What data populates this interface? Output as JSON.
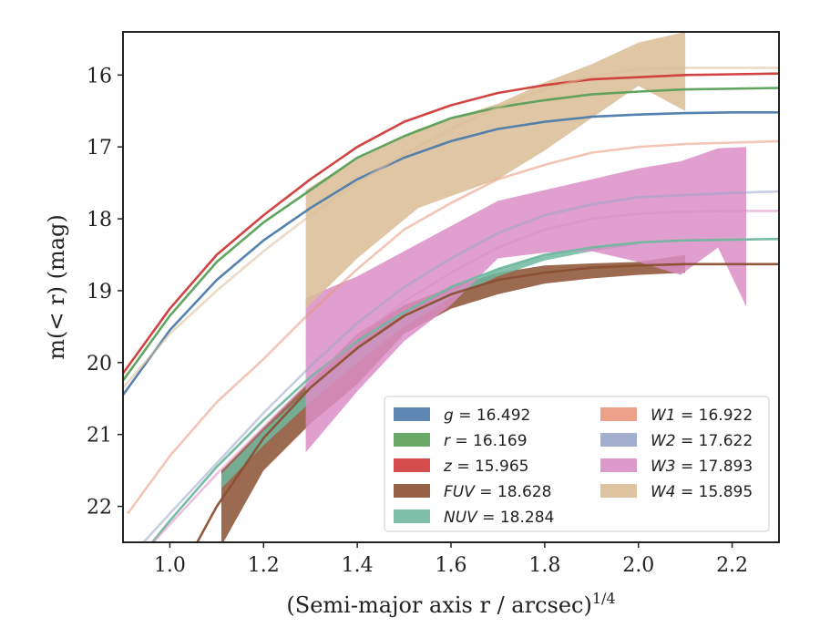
{
  "chart_data": {
    "type": "line",
    "title": "",
    "xlabel": "(Semi-major axis r / arcsec)",
    "xlabel_superscript": "1/4",
    "ylabel": "m(< r) (mag)",
    "xlim": [
      0.9,
      2.3
    ],
    "ylim": [
      22.5,
      15.4
    ],
    "y_inverted": true,
    "grid": false,
    "legend_position": "lower-right",
    "x_ticks": [
      "1.0",
      "1.2",
      "1.4",
      "1.6",
      "1.8",
      "2.0",
      "2.2"
    ],
    "y_ticks": [
      "16",
      "17",
      "18",
      "19",
      "20",
      "21",
      "22"
    ],
    "series": [
      {
        "name": "g = 16.492",
        "band": "g",
        "value": "16.492",
        "color": "#4c7bab",
        "curve": [
          [
            0.9,
            20.45
          ],
          [
            1.0,
            19.55
          ],
          [
            1.1,
            18.85
          ],
          [
            1.2,
            18.3
          ],
          [
            1.3,
            17.85
          ],
          [
            1.4,
            17.45
          ],
          [
            1.5,
            17.15
          ],
          [
            1.6,
            16.92
          ],
          [
            1.7,
            16.75
          ],
          [
            1.8,
            16.65
          ],
          [
            1.9,
            16.58
          ],
          [
            2.0,
            16.55
          ],
          [
            2.1,
            16.53
          ],
          [
            2.2,
            16.52
          ],
          [
            2.3,
            16.52
          ]
        ],
        "band_region": null
      },
      {
        "name": "r = 16.169",
        "band": "r",
        "value": "16.169",
        "color": "#5aa058",
        "curve": [
          [
            0.9,
            20.25
          ],
          [
            1.0,
            19.35
          ],
          [
            1.1,
            18.6
          ],
          [
            1.2,
            18.05
          ],
          [
            1.3,
            17.6
          ],
          [
            1.4,
            17.15
          ],
          [
            1.5,
            16.85
          ],
          [
            1.6,
            16.6
          ],
          [
            1.7,
            16.45
          ],
          [
            1.8,
            16.35
          ],
          [
            1.9,
            16.27
          ],
          [
            2.0,
            16.23
          ],
          [
            2.1,
            16.2
          ],
          [
            2.2,
            16.19
          ],
          [
            2.3,
            16.18
          ]
        ],
        "band_region": null
      },
      {
        "name": "z = 15.965",
        "band": "z",
        "value": "15.965",
        "color": "#d03a3a",
        "curve": [
          [
            0.9,
            20.15
          ],
          [
            1.0,
            19.25
          ],
          [
            1.1,
            18.5
          ],
          [
            1.2,
            17.95
          ],
          [
            1.3,
            17.45
          ],
          [
            1.4,
            17.0
          ],
          [
            1.5,
            16.65
          ],
          [
            1.6,
            16.42
          ],
          [
            1.7,
            16.25
          ],
          [
            1.8,
            16.14
          ],
          [
            1.9,
            16.06
          ],
          [
            2.0,
            16.03
          ],
          [
            2.1,
            16.0
          ],
          [
            2.2,
            15.99
          ],
          [
            2.3,
            15.98
          ]
        ],
        "band_region": null
      },
      {
        "name": "FUV = 18.628",
        "band": "FUV",
        "value": "18.628",
        "color": "#8b5033",
        "curve": [
          [
            1.05,
            22.6
          ],
          [
            1.1,
            22.0
          ],
          [
            1.2,
            21.05
          ],
          [
            1.3,
            20.35
          ],
          [
            1.4,
            19.8
          ],
          [
            1.5,
            19.35
          ],
          [
            1.6,
            19.05
          ],
          [
            1.7,
            18.85
          ],
          [
            1.8,
            18.75
          ],
          [
            1.9,
            18.68
          ],
          [
            2.0,
            18.65
          ],
          [
            2.1,
            18.63
          ],
          [
            2.2,
            18.63
          ],
          [
            2.3,
            18.63
          ]
        ],
        "band_region": {
          "upper": [
            [
              1.11,
              21.5
            ],
            [
              1.2,
              20.9
            ],
            [
              1.3,
              20.25
            ],
            [
              1.4,
              19.6
            ],
            [
              1.5,
              19.2
            ],
            [
              1.6,
              18.95
            ],
            [
              1.7,
              18.75
            ],
            [
              1.8,
              18.65
            ],
            [
              1.9,
              18.62
            ],
            [
              2.0,
              18.6
            ],
            [
              2.1,
              18.5
            ]
          ],
          "lower": [
            [
              1.11,
              22.55
            ],
            [
              1.2,
              21.5
            ],
            [
              1.3,
              20.85
            ],
            [
              1.4,
              20.3
            ],
            [
              1.5,
              19.6
            ],
            [
              1.6,
              19.25
            ],
            [
              1.7,
              19.05
            ],
            [
              1.8,
              18.9
            ],
            [
              1.9,
              18.83
            ],
            [
              2.0,
              18.78
            ],
            [
              2.1,
              18.75
            ]
          ]
        }
      },
      {
        "name": "NUV = 18.284",
        "band": "NUV",
        "value": "18.284",
        "color": "#6fb8a0",
        "curve": [
          [
            0.95,
            22.6
          ],
          [
            1.0,
            22.2
          ],
          [
            1.1,
            21.45
          ],
          [
            1.2,
            20.8
          ],
          [
            1.3,
            20.2
          ],
          [
            1.4,
            19.7
          ],
          [
            1.5,
            19.3
          ],
          [
            1.6,
            18.95
          ],
          [
            1.7,
            18.7
          ],
          [
            1.8,
            18.5
          ],
          [
            1.9,
            18.4
          ],
          [
            2.0,
            18.33
          ],
          [
            2.1,
            18.3
          ],
          [
            2.2,
            18.29
          ],
          [
            2.3,
            18.28
          ]
        ],
        "band_region": {
          "upper": [
            [
              1.11,
              21.55
            ],
            [
              1.2,
              20.95
            ],
            [
              1.3,
              20.35
            ],
            [
              1.4,
              19.8
            ],
            [
              1.5,
              19.35
            ],
            [
              1.6,
              19.0
            ],
            [
              1.7,
              18.7
            ],
            [
              1.8,
              18.5
            ],
            [
              1.9,
              18.4
            ],
            [
              2.0,
              18.33
            ]
          ],
          "lower": [
            [
              1.11,
              21.75
            ],
            [
              1.2,
              21.15
            ],
            [
              1.3,
              20.55
            ],
            [
              1.4,
              20.0
            ],
            [
              1.5,
              19.5
            ],
            [
              1.6,
              19.1
            ],
            [
              1.7,
              18.8
            ],
            [
              1.8,
              18.58
            ],
            [
              1.9,
              18.45
            ],
            [
              2.0,
              18.36
            ]
          ]
        }
      },
      {
        "name": "W1 = 16.922",
        "band": "W1",
        "value": "16.922",
        "color": "#e9967a",
        "curve": [
          [
            0.91,
            22.1
          ],
          [
            1.0,
            21.3
          ],
          [
            1.1,
            20.55
          ],
          [
            1.2,
            19.95
          ],
          [
            1.3,
            19.3
          ],
          [
            1.4,
            18.7
          ],
          [
            1.5,
            18.15
          ],
          [
            1.6,
            17.78
          ],
          [
            1.7,
            17.45
          ],
          [
            1.8,
            17.25
          ],
          [
            1.9,
            17.08
          ],
          [
            2.0,
            17.0
          ],
          [
            2.1,
            16.96
          ],
          [
            2.2,
            16.94
          ],
          [
            2.3,
            16.92
          ]
        ],
        "band_region": null
      },
      {
        "name": "W2 = 17.622",
        "band": "W2",
        "value": "17.622",
        "color": "#9aa6cb",
        "curve": [
          [
            0.93,
            22.6
          ],
          [
            1.0,
            22.1
          ],
          [
            1.1,
            21.4
          ],
          [
            1.2,
            20.7
          ],
          [
            1.3,
            20.05
          ],
          [
            1.4,
            19.45
          ],
          [
            1.5,
            18.95
          ],
          [
            1.6,
            18.55
          ],
          [
            1.7,
            18.2
          ],
          [
            1.8,
            17.95
          ],
          [
            1.9,
            17.8
          ],
          [
            2.0,
            17.7
          ],
          [
            2.1,
            17.67
          ],
          [
            2.2,
            17.64
          ],
          [
            2.3,
            17.62
          ]
        ],
        "band_region": null
      },
      {
        "name": "W3 = 17.893",
        "band": "W3",
        "value": "17.893",
        "color": "#da8ec5",
        "curve": [
          [
            0.95,
            22.6
          ],
          [
            1.0,
            22.25
          ],
          [
            1.1,
            21.55
          ],
          [
            1.2,
            20.9
          ],
          [
            1.3,
            20.25
          ],
          [
            1.4,
            19.65
          ],
          [
            1.5,
            19.15
          ],
          [
            1.6,
            18.75
          ],
          [
            1.7,
            18.4
          ],
          [
            1.8,
            18.15
          ],
          [
            1.9,
            18.0
          ],
          [
            2.0,
            17.93
          ],
          [
            2.1,
            17.9
          ],
          [
            2.2,
            17.89
          ],
          [
            2.3,
            17.89
          ]
        ],
        "band_region": {
          "upper": [
            [
              1.29,
              19.1
            ],
            [
              1.4,
              18.8
            ],
            [
              1.5,
              18.45
            ],
            [
              1.6,
              18.1
            ],
            [
              1.7,
              17.75
            ],
            [
              1.8,
              17.6
            ],
            [
              1.9,
              17.45
            ],
            [
              2.0,
              17.3
            ],
            [
              2.09,
              17.2
            ],
            [
              2.17,
              17.02
            ],
            [
              2.23,
              17.0
            ]
          ],
          "lower": [
            [
              1.29,
              21.25
            ],
            [
              1.4,
              20.4
            ],
            [
              1.5,
              19.7
            ],
            [
              1.6,
              19.2
            ],
            [
              1.7,
              18.55
            ],
            [
              1.8,
              18.47
            ],
            [
              1.9,
              18.45
            ],
            [
              2.0,
              18.6
            ],
            [
              2.09,
              18.78
            ],
            [
              2.17,
              18.4
            ],
            [
              2.23,
              19.22
            ]
          ]
        }
      },
      {
        "name": "W4 = 15.895",
        "band": "W4",
        "value": "15.895",
        "color": "#d9bd96",
        "curve": [
          [
            0.9,
            20.35
          ],
          [
            1.0,
            19.6
          ],
          [
            1.1,
            19.0
          ],
          [
            1.2,
            18.45
          ],
          [
            1.3,
            17.95
          ],
          [
            1.4,
            17.5
          ],
          [
            1.5,
            17.1
          ],
          [
            1.6,
            16.75
          ],
          [
            1.7,
            16.45
          ],
          [
            1.8,
            16.2
          ],
          [
            1.9,
            16.02
          ],
          [
            2.0,
            15.92
          ],
          [
            2.1,
            15.9
          ],
          [
            2.2,
            15.9
          ],
          [
            2.3,
            15.9
          ]
        ],
        "band_region": {
          "upper": [
            [
              1.29,
              17.6
            ],
            [
              1.4,
              17.15
            ],
            [
              1.53,
              16.75
            ],
            [
              1.7,
              16.4
            ],
            [
              1.8,
              16.1
            ],
            [
              1.9,
              15.85
            ],
            [
              2.0,
              15.55
            ],
            [
              2.1,
              15.4
            ]
          ],
          "lower": [
            [
              1.29,
              19.25
            ],
            [
              1.4,
              18.55
            ],
            [
              1.53,
              17.85
            ],
            [
              1.7,
              17.45
            ],
            [
              1.8,
              17.05
            ],
            [
              1.9,
              16.6
            ],
            [
              2.0,
              16.15
            ],
            [
              2.1,
              16.5
            ]
          ]
        }
      }
    ]
  }
}
